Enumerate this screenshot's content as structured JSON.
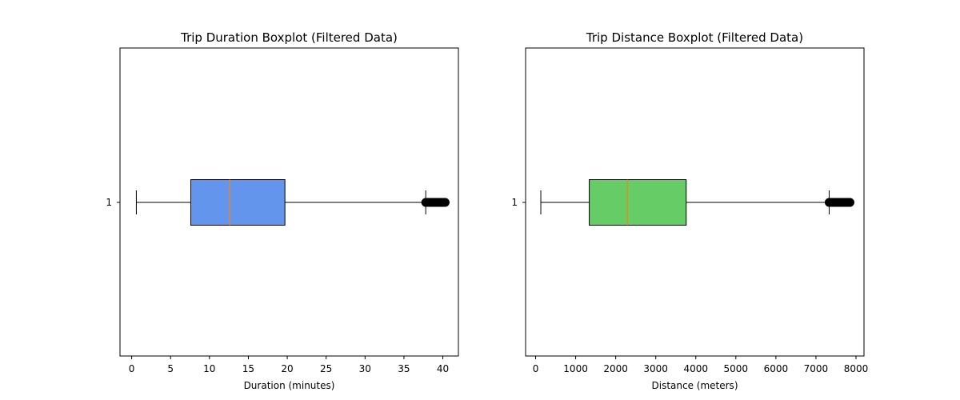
{
  "chart_data": [
    {
      "type": "boxplot",
      "orientation": "horizontal",
      "title": "Trip Duration Boxplot (Filtered Data)",
      "xlabel": "Duration (minutes)",
      "ylabel": "",
      "xlim": [
        -1.5,
        42
      ],
      "xticks": [
        0,
        5,
        10,
        15,
        20,
        25,
        30,
        35,
        40
      ],
      "categories": [
        "1"
      ],
      "box": {
        "whisker_low": 0.6,
        "q1": 7.6,
        "median": 12.6,
        "q3": 19.7,
        "whisker_high": 37.8,
        "outliers_range": [
          37.8,
          40.3
        ]
      },
      "box_color": "#6495ED",
      "median_color": "#FF7F0E"
    },
    {
      "type": "boxplot",
      "orientation": "horizontal",
      "title": "Trip Distance Boxplot (Filtered Data)",
      "xlabel": "Distance (meters)",
      "ylabel": "",
      "xlim": [
        -250,
        8200
      ],
      "xticks": [
        0,
        1000,
        2000,
        3000,
        4000,
        5000,
        6000,
        7000,
        8000
      ],
      "categories": [
        "1"
      ],
      "box": {
        "whisker_low": 130,
        "q1": 1340,
        "median": 2290,
        "q3": 3760,
        "whisker_high": 7330,
        "outliers_range": [
          7330,
          7850
        ]
      },
      "box_color": "#66CC66",
      "median_color": "#FF7F0E"
    }
  ]
}
